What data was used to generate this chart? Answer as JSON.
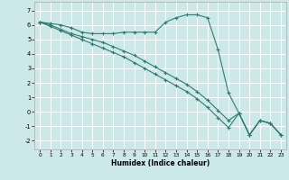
{
  "xlabel": "Humidex (Indice chaleur)",
  "background_color": "#cce8e8",
  "grid_color": "#ffffff",
  "line_color": "#2d7d6e",
  "xlim": [
    -0.5,
    23.5
  ],
  "ylim": [
    -2.6,
    7.6
  ],
  "xticks": [
    0,
    1,
    2,
    3,
    4,
    5,
    6,
    7,
    8,
    9,
    10,
    11,
    12,
    13,
    14,
    15,
    16,
    17,
    18,
    19,
    20,
    21,
    22,
    23
  ],
  "yticks": [
    -2,
    -1,
    0,
    1,
    2,
    3,
    4,
    5,
    6,
    7
  ],
  "series1_x": [
    0,
    1,
    2,
    3,
    4,
    5,
    6,
    7,
    8,
    9,
    10,
    11,
    12,
    13,
    14,
    15,
    16,
    17,
    18,
    19,
    20,
    21,
    22,
    23
  ],
  "series1_y": [
    6.2,
    6.1,
    6.0,
    5.8,
    5.5,
    5.4,
    5.4,
    5.4,
    5.5,
    5.5,
    5.5,
    5.5,
    6.2,
    6.5,
    6.7,
    6.7,
    6.5,
    4.3,
    1.3,
    -0.1,
    -1.6,
    -0.6,
    -0.8,
    -1.6
  ],
  "series2_x": [
    0,
    1,
    2,
    3,
    4,
    5,
    6,
    7,
    8,
    9,
    10,
    11,
    12,
    13,
    14,
    15,
    16,
    17,
    18,
    19,
    20,
    21,
    22,
    23
  ],
  "series2_y": [
    6.2,
    6.0,
    5.7,
    5.4,
    5.2,
    5.0,
    4.8,
    4.5,
    4.2,
    3.9,
    3.5,
    3.1,
    2.7,
    2.3,
    1.9,
    1.4,
    0.8,
    0.1,
    -0.6,
    -0.1,
    -1.6,
    -0.6,
    -0.8,
    -1.6
  ],
  "series3_x": [
    0,
    1,
    2,
    3,
    4,
    5,
    6,
    7,
    8,
    9,
    10,
    11,
    12,
    13,
    14,
    15,
    16,
    17,
    18,
    19,
    20,
    21,
    22,
    23
  ],
  "series3_y": [
    6.2,
    5.9,
    5.6,
    5.3,
    5.0,
    4.7,
    4.4,
    4.1,
    3.8,
    3.4,
    3.0,
    2.6,
    2.2,
    1.8,
    1.4,
    0.9,
    0.3,
    -0.4,
    -1.1,
    -0.1,
    -1.6,
    -0.6,
    -0.8,
    -1.6
  ]
}
